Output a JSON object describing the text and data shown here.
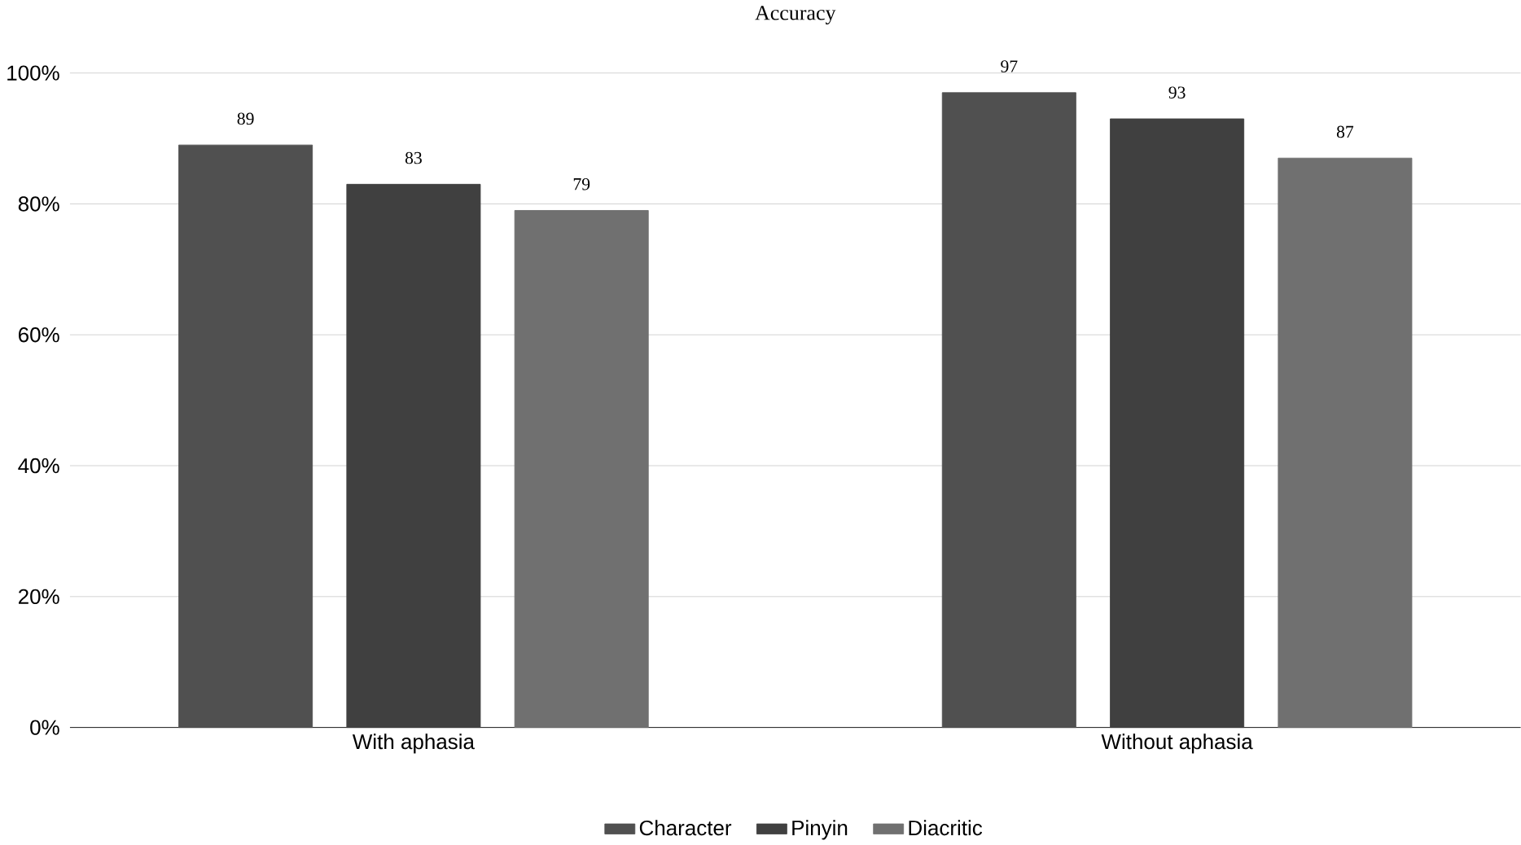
{
  "chart_data": {
    "type": "bar",
    "title": "Accuracy",
    "categories": [
      "With aphasia",
      "Without aphasia"
    ],
    "series": [
      {
        "name": "Character",
        "color": "#505050",
        "values": [
          89,
          97
        ]
      },
      {
        "name": "Pinyin",
        "color": "#404040",
        "values": [
          83,
          93
        ]
      },
      {
        "name": "Diacritic",
        "color": "#707070",
        "values": [
          79,
          87
        ]
      }
    ],
    "ylim": [
      0,
      100
    ],
    "yticks": [
      {
        "value": 0,
        "label": "0%"
      },
      {
        "value": 20,
        "label": "20%"
      },
      {
        "value": 40,
        "label": "40%"
      },
      {
        "value": 60,
        "label": "60%"
      },
      {
        "value": 80,
        "label": "80%"
      },
      {
        "value": 100,
        "label": "100%"
      }
    ],
    "grid": "y",
    "legend": "bottom",
    "data_labels": true
  }
}
